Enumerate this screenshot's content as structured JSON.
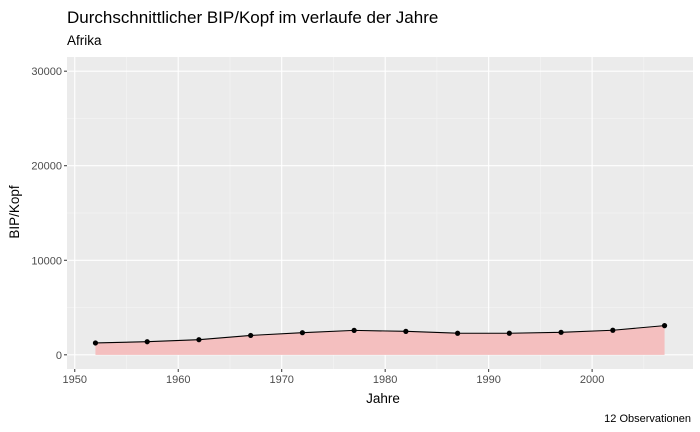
{
  "colors": {
    "panel_background": "#ebebeb",
    "grid_major": "#ffffff",
    "grid_minor": "#f5f5f5",
    "area_fill": "#f4bfbf",
    "line": "#000000",
    "points": "#000000",
    "tick_text": "#4d4d4d"
  },
  "chart_data": {
    "type": "area",
    "title": "Durchschnittlicher BIP/Kopf im verlaufe der Jahre",
    "subtitle": "Afrika",
    "xlabel": "Jahre",
    "ylabel": "BIP/Kopf",
    "caption": "12 Observationen",
    "x": [
      1952,
      1957,
      1962,
      1967,
      1972,
      1977,
      1982,
      1987,
      1992,
      1997,
      2002,
      2007
    ],
    "y": [
      1253,
      1385,
      1598,
      2050,
      2340,
      2586,
      2482,
      2283,
      2282,
      2379,
      2599,
      3089
    ],
    "xlim": [
      1949.25,
      2009.75
    ],
    "ylim": [
      -1500,
      31500
    ],
    "x_ticks": [
      1950,
      1960,
      1970,
      1980,
      1990,
      2000
    ],
    "x_tick_labels": [
      "1950",
      "1960",
      "1970",
      "1980",
      "1990",
      "2000"
    ],
    "y_ticks": [
      0,
      10000,
      20000,
      30000
    ],
    "y_tick_labels": [
      "0",
      "10000",
      "20000",
      "30000"
    ],
    "grid": true,
    "legend": "none"
  }
}
